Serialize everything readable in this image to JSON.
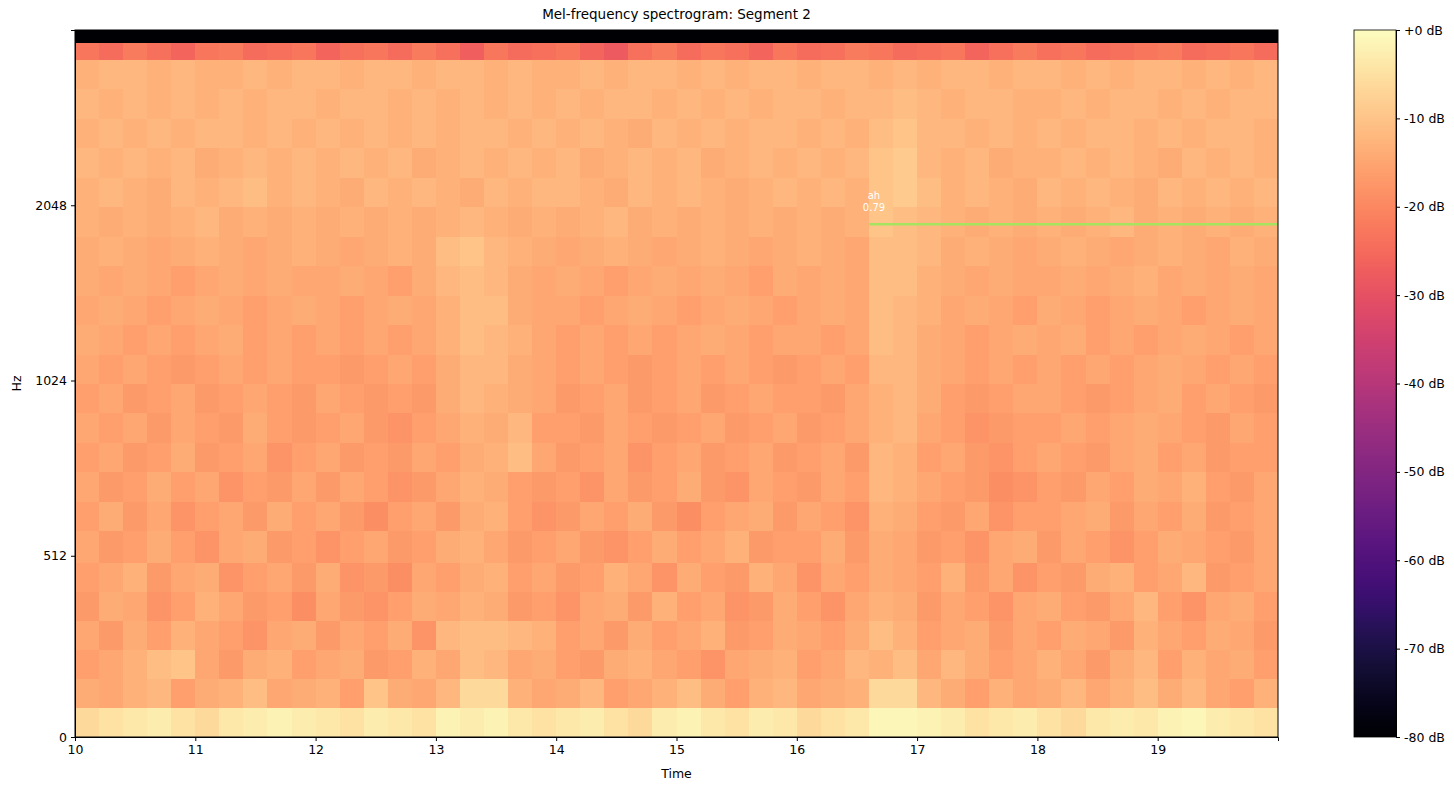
{
  "chart_data": {
    "type": "heatmap",
    "title": "Mel-frequency spectrogram: Segment 2",
    "x_label": "Time",
    "y_label": "Hz",
    "xlim": [
      10,
      20
    ],
    "xticks": [
      10,
      11,
      12,
      13,
      14,
      15,
      16,
      17,
      18,
      19
    ],
    "ylim": [
      0,
      4096
    ],
    "yticks": [
      0,
      512,
      1024,
      2048
    ],
    "x_edges": [
      10,
      10.2,
      10.4,
      10.6,
      10.8,
      11,
      11.2,
      11.4,
      11.6,
      11.8,
      12,
      12.2,
      12.4,
      12.6,
      12.8,
      13,
      13.2,
      13.4,
      13.6,
      13.8,
      14,
      14.2,
      14.4,
      14.6,
      14.8,
      15,
      15.2,
      15.4,
      15.6,
      15.8,
      16,
      16.2,
      16.4,
      16.6,
      16.8,
      17,
      17.2,
      17.4,
      17.6,
      17.8,
      18,
      18.2,
      18.4,
      18.6,
      18.8,
      19,
      19.2,
      19.4,
      19.6,
      19.8,
      20
    ],
    "y_edges": [
      0,
      83,
      166,
      250,
      333,
      416,
      499,
      565,
      635,
      714,
      802,
      901,
      1012,
      1137,
      1277,
      1435,
      1612,
      1811,
      2035,
      2288,
      2571,
      2888,
      3245,
      3645,
      3900,
      4096
    ],
    "values": [
      [
        -6,
        -5,
        -4,
        -3,
        -5,
        -6,
        -4,
        -3,
        -2,
        -3,
        -4,
        -5,
        -3,
        -4,
        -5,
        -2,
        -3,
        -2,
        -4,
        -5,
        -4,
        -3,
        -5,
        -6,
        -3,
        -2,
        -4,
        -5,
        -3,
        -4,
        -6,
        -5,
        -4,
        -1,
        -1,
        -2,
        -3,
        -5,
        -4,
        -3,
        -5,
        -6,
        -4,
        -3,
        -4,
        -2,
        -1,
        -3,
        -4,
        -5
      ],
      [
        -14,
        -15,
        -13,
        -12,
        -16,
        -14,
        -13,
        -11,
        -15,
        -14,
        -13,
        -16,
        -10,
        -14,
        -15,
        -12,
        -6,
        -6,
        -13,
        -15,
        -14,
        -12,
        -16,
        -15,
        -13,
        -11,
        -14,
        -16,
        -13,
        -12,
        -15,
        -14,
        -13,
        -6,
        -6,
        -12,
        -14,
        -16,
        -13,
        -15,
        -14,
        -12,
        -15,
        -13,
        -11,
        -14,
        -12,
        -15,
        -16,
        -13
      ],
      [
        -16,
        -15,
        -13,
        -11,
        -10,
        -15,
        -17,
        -14,
        -13,
        -16,
        -15,
        -14,
        -17,
        -16,
        -13,
        -15,
        -11,
        -12,
        -15,
        -14,
        -16,
        -17,
        -14,
        -13,
        -15,
        -16,
        -18,
        -15,
        -14,
        -13,
        -16,
        -15,
        -12,
        -13,
        -11,
        -15,
        -12,
        -14,
        -16,
        -15,
        -13,
        -15,
        -17,
        -14,
        -12,
        -16,
        -13,
        -15,
        -14,
        -16
      ],
      [
        -15,
        -17,
        -14,
        -16,
        -13,
        -15,
        -16,
        -18,
        -15,
        -14,
        -17,
        -15,
        -16,
        -14,
        -18,
        -12,
        -11,
        -11,
        -12,
        -13,
        -16,
        -15,
        -17,
        -14,
        -16,
        -15,
        -13,
        -17,
        -16,
        -14,
        -15,
        -16,
        -14,
        -11,
        -13,
        -16,
        -15,
        -14,
        -17,
        -15,
        -16,
        -14,
        -15,
        -17,
        -13,
        -15,
        -16,
        -14,
        -15,
        -17
      ],
      [
        -17,
        -14,
        -15,
        -18,
        -16,
        -13,
        -15,
        -17,
        -16,
        -19,
        -15,
        -17,
        -18,
        -16,
        -14,
        -15,
        -13,
        -14,
        -17,
        -16,
        -18,
        -15,
        -14,
        -17,
        -13,
        -16,
        -15,
        -18,
        -17,
        -14,
        -16,
        -18,
        -15,
        -13,
        -14,
        -17,
        -15,
        -16,
        -18,
        -15,
        -14,
        -16,
        -17,
        -15,
        -12,
        -16,
        -18,
        -15,
        -14,
        -16
      ],
      [
        -16,
        -15,
        -13,
        -17,
        -15,
        -14,
        -18,
        -16,
        -15,
        -17,
        -14,
        -18,
        -17,
        -19,
        -15,
        -16,
        -14,
        -13,
        -16,
        -15,
        -17,
        -16,
        -13,
        -15,
        -18,
        -14,
        -16,
        -17,
        -13,
        -15,
        -18,
        -15,
        -16,
        -14,
        -15,
        -16,
        -13,
        -17,
        -15,
        -18,
        -16,
        -17,
        -14,
        -13,
        -16,
        -15,
        -12,
        -17,
        -16,
        -15
      ],
      [
        -15,
        -17,
        -16,
        -14,
        -16,
        -18,
        -15,
        -14,
        -17,
        -16,
        -18,
        -16,
        -15,
        -17,
        -16,
        -14,
        -13,
        -15,
        -17,
        -16,
        -15,
        -17,
        -18,
        -16,
        -14,
        -16,
        -15,
        -13,
        -17,
        -16,
        -16,
        -14,
        -17,
        -14,
        -15,
        -17,
        -16,
        -18,
        -15,
        -14,
        -17,
        -15,
        -16,
        -18,
        -16,
        -14,
        -15,
        -16,
        -17,
        -15
      ],
      [
        -16,
        -14,
        -17,
        -15,
        -18,
        -16,
        -15,
        -17,
        -14,
        -16,
        -15,
        -17,
        -19,
        -16,
        -15,
        -17,
        -14,
        -13,
        -16,
        -18,
        -17,
        -15,
        -16,
        -14,
        -17,
        -19,
        -16,
        -15,
        -14,
        -17,
        -15,
        -16,
        -18,
        -13,
        -14,
        -16,
        -17,
        -15,
        -18,
        -16,
        -16,
        -15,
        -14,
        -17,
        -15,
        -16,
        -14,
        -17,
        -16,
        -15
      ],
      [
        -15,
        -17,
        -16,
        -14,
        -16,
        -15,
        -18,
        -16,
        -17,
        -15,
        -17,
        -15,
        -16,
        -18,
        -17,
        -15,
        -13,
        -14,
        -16,
        -17,
        -16,
        -18,
        -15,
        -17,
        -16,
        -14,
        -17,
        -18,
        -15,
        -16,
        -17,
        -15,
        -16,
        -12,
        -13,
        -15,
        -16,
        -17,
        -19,
        -18,
        -16,
        -17,
        -15,
        -16,
        -14,
        -15,
        -13,
        -16,
        -17,
        -15
      ],
      [
        -16,
        -15,
        -17,
        -16,
        -14,
        -17,
        -16,
        -15,
        -18,
        -16,
        -15,
        -17,
        -16,
        -17,
        -15,
        -16,
        -14,
        -13,
        -11,
        -15,
        -17,
        -16,
        -15,
        -18,
        -16,
        -15,
        -17,
        -16,
        -15,
        -17,
        -16,
        -15,
        -17,
        -12,
        -13,
        -16,
        -15,
        -17,
        -18,
        -16,
        -15,
        -16,
        -17,
        -15,
        -14,
        -16,
        -15,
        -17,
        -16,
        -16
      ],
      [
        -15,
        -16,
        -15,
        -17,
        -15,
        -16,
        -17,
        -14,
        -16,
        -17,
        -16,
        -15,
        -17,
        -18,
        -16,
        -15,
        -13,
        -14,
        -12,
        -16,
        -16,
        -17,
        -15,
        -16,
        -17,
        -16,
        -15,
        -17,
        -16,
        -15,
        -17,
        -16,
        -15,
        -13,
        -12,
        -15,
        -16,
        -18,
        -17,
        -16,
        -16,
        -15,
        -16,
        -15,
        -14,
        -15,
        -16,
        -17,
        -15,
        -16
      ],
      [
        -16,
        -15,
        -17,
        -16,
        -15,
        -17,
        -16,
        -15,
        -16,
        -17,
        -15,
        -16,
        -17,
        -16,
        -17,
        -14,
        -12,
        -13,
        -14,
        -15,
        -17,
        -16,
        -15,
        -17,
        -16,
        -15,
        -17,
        -16,
        -15,
        -16,
        -16,
        -17,
        -15,
        -13,
        -12,
        -14,
        -16,
        -17,
        -16,
        -15,
        -15,
        -16,
        -17,
        -16,
        -15,
        -14,
        -16,
        -15,
        -16,
        -17
      ],
      [
        -15,
        -16,
        -15,
        -16,
        -17,
        -16,
        -15,
        -16,
        -15,
        -16,
        -16,
        -17,
        -16,
        -15,
        -16,
        -14,
        -12,
        -12,
        -14,
        -15,
        -16,
        -15,
        -16,
        -17,
        -16,
        -15,
        -16,
        -15,
        -16,
        -17,
        -16,
        -15,
        -16,
        -12,
        -12,
        -14,
        -15,
        -16,
        -15,
        -16,
        -15,
        -16,
        -15,
        -16,
        -15,
        -14,
        -15,
        -16,
        -15,
        -16
      ],
      [
        -14,
        -15,
        -16,
        -15,
        -16,
        -15,
        -14,
        -16,
        -15,
        -16,
        -15,
        -16,
        -15,
        -16,
        -15,
        -13,
        -11,
        -12,
        -13,
        -15,
        -16,
        -15,
        -16,
        -15,
        -16,
        -15,
        -14,
        -15,
        -16,
        -15,
        -15,
        -16,
        -15,
        -11,
        -12,
        -14,
        -15,
        -16,
        -15,
        -14,
        -15,
        -14,
        -16,
        -15,
        -16,
        -15,
        -14,
        -15,
        -16,
        -15
      ],
      [
        -15,
        -14,
        -15,
        -16,
        -15,
        -14,
        -15,
        -16,
        -15,
        -14,
        -15,
        -16,
        -15,
        -14,
        -15,
        -13,
        -11,
        -11,
        -14,
        -15,
        -15,
        -16,
        -15,
        -14,
        -15,
        -16,
        -15,
        -14,
        -15,
        -16,
        -15,
        -14,
        -15,
        -11,
        -12,
        -13,
        -15,
        -14,
        -15,
        -16,
        -14,
        -15,
        -16,
        -15,
        -14,
        -15,
        -16,
        -15,
        -14,
        -15
      ],
      [
        -14,
        -15,
        -14,
        -15,
        -16,
        -15,
        -14,
        -15,
        -14,
        -15,
        -15,
        -14,
        -15,
        -16,
        -14,
        -12,
        -11,
        -12,
        -14,
        -15,
        -14,
        -15,
        -16,
        -15,
        -14,
        -15,
        -14,
        -15,
        -16,
        -14,
        -15,
        -14,
        -15,
        -11,
        -11,
        -13,
        -14,
        -15,
        -14,
        -15,
        -15,
        -14,
        -15,
        -14,
        -13,
        -15,
        -14,
        -15,
        -14,
        -15
      ],
      [
        -14,
        -13,
        -14,
        -15,
        -14,
        -13,
        -14,
        -15,
        -14,
        -13,
        -14,
        -15,
        -14,
        -13,
        -14,
        -11,
        -10,
        -12,
        -13,
        -14,
        -15,
        -14,
        -13,
        -14,
        -15,
        -14,
        -13,
        -14,
        -15,
        -14,
        -13,
        -14,
        -15,
        -11,
        -11,
        -12,
        -14,
        -13,
        -14,
        -15,
        -14,
        -13,
        -14,
        -15,
        -14,
        -13,
        -14,
        -15,
        -13,
        -14
      ],
      [
        -13,
        -14,
        -13,
        -14,
        -13,
        -12,
        -14,
        -13,
        -14,
        -13,
        -14,
        -13,
        -14,
        -13,
        -14,
        -13,
        -12,
        -13,
        -14,
        -13,
        -14,
        -13,
        -12,
        -14,
        -13,
        -14,
        -13,
        -14,
        -13,
        -14,
        -13,
        -14,
        -13,
        -10,
        -11,
        -12,
        -13,
        -14,
        -13,
        -14,
        -13,
        -14,
        -13,
        -12,
        -14,
        -13,
        -14,
        -13,
        -14,
        -13
      ],
      [
        -13,
        -12,
        -13,
        -14,
        -12,
        -13,
        -12,
        -11,
        -13,
        -12,
        -13,
        -14,
        -12,
        -13,
        -12,
        -13,
        -14,
        -12,
        -13,
        -12,
        -12,
        -13,
        -14,
        -12,
        -13,
        -12,
        -13,
        -14,
        -13,
        -12,
        -13,
        -12,
        -13,
        -10,
        -9,
        -11,
        -13,
        -12,
        -13,
        -14,
        -12,
        -13,
        -12,
        -13,
        -14,
        -12,
        -13,
        -12,
        -13,
        -12
      ],
      [
        -12,
        -13,
        -12,
        -13,
        -12,
        -14,
        -13,
        -12,
        -13,
        -12,
        -13,
        -12,
        -13,
        -12,
        -14,
        -13,
        -12,
        -13,
        -12,
        -13,
        -12,
        -14,
        -13,
        -12,
        -13,
        -12,
        -14,
        -13,
        -12,
        -13,
        -12,
        -13,
        -12,
        -10,
        -9,
        -12,
        -13,
        -12,
        -14,
        -13,
        -13,
        -12,
        -13,
        -12,
        -13,
        -14,
        -12,
        -13,
        -12,
        -13
      ],
      [
        -13,
        -12,
        -13,
        -12,
        -13,
        -12,
        -12,
        -13,
        -12,
        -13,
        -12,
        -13,
        -12,
        -13,
        -12,
        -13,
        -12,
        -12,
        -13,
        -12,
        -13,
        -12,
        -13,
        -14,
        -12,
        -13,
        -12,
        -13,
        -12,
        -12,
        -13,
        -12,
        -13,
        -11,
        -10,
        -12,
        -12,
        -13,
        -12,
        -13,
        -12,
        -13,
        -12,
        -12,
        -13,
        -12,
        -13,
        -12,
        -12,
        -13
      ],
      [
        -12,
        -13,
        -12,
        -13,
        -12,
        -13,
        -12,
        -13,
        -12,
        -12,
        -13,
        -12,
        -12,
        -13,
        -12,
        -13,
        -12,
        -13,
        -12,
        -13,
        -12,
        -13,
        -12,
        -12,
        -13,
        -12,
        -13,
        -12,
        -13,
        -12,
        -12,
        -13,
        -12,
        -12,
        -11,
        -12,
        -13,
        -12,
        -12,
        -13,
        -13,
        -12,
        -13,
        -12,
        -12,
        -13,
        -12,
        -13,
        -12,
        -12
      ],
      [
        -13,
        -12,
        -12,
        -13,
        -12,
        -13,
        -13,
        -12,
        -13,
        -12,
        -12,
        -13,
        -12,
        -12,
        -13,
        -12,
        -12,
        -13,
        -12,
        -13,
        -13,
        -12,
        -13,
        -12,
        -12,
        -13,
        -12,
        -13,
        -12,
        -12,
        -13,
        -12,
        -12,
        -13,
        -12,
        -13,
        -12,
        -12,
        -13,
        -12,
        -12,
        -13,
        -12,
        -13,
        -12,
        -12,
        -13,
        -12,
        -13,
        -12
      ],
      [
        -23,
        -25,
        -22,
        -24,
        -26,
        -23,
        -22,
        -25,
        -24,
        -23,
        -26,
        -24,
        -23,
        -25,
        -22,
        -24,
        -27,
        -23,
        -25,
        -24,
        -23,
        -26,
        -28,
        -24,
        -22,
        -25,
        -23,
        -24,
        -26,
        -23,
        -25,
        -24,
        -22,
        -23,
        -25,
        -24,
        -23,
        -26,
        -24,
        -22,
        -24,
        -23,
        -25,
        -24,
        -23,
        -22,
        -25,
        -24,
        -23,
        -25
      ],
      [
        -80,
        -80,
        -80,
        -80,
        -80,
        -80,
        -80,
        -80,
        -80,
        -80,
        -80,
        -80,
        -80,
        -80,
        -80,
        -80,
        -80,
        -80,
        -80,
        -80,
        -80,
        -80,
        -80,
        -80,
        -80,
        -80,
        -80,
        -80,
        -80,
        -80,
        -80,
        -80,
        -80,
        -80,
        -80,
        -80,
        -80,
        -80,
        -80,
        -80,
        -80,
        -80,
        -80,
        -80,
        -80,
        -80,
        -80,
        -80,
        -80,
        -80
      ]
    ],
    "colorbar": {
      "range": [
        -80,
        0
      ],
      "ticks": [
        {
          "value": 0,
          "label": "+0 dB"
        },
        {
          "value": -10,
          "label": "-10 dB"
        },
        {
          "value": -20,
          "label": "-20 dB"
        },
        {
          "value": -30,
          "label": "-30 dB"
        },
        {
          "value": -40,
          "label": "-40 dB"
        },
        {
          "value": -50,
          "label": "-50 dB"
        },
        {
          "value": -60,
          "label": "-60 dB"
        },
        {
          "value": -70,
          "label": "-70 dB"
        },
        {
          "value": -80,
          "label": "-80 dB"
        }
      ]
    },
    "annotations": [
      {
        "label": "ah",
        "score": 0.79,
        "start": 16.6,
        "end": 20,
        "frequency": 1900,
        "color": "#a6e35e"
      }
    ]
  }
}
